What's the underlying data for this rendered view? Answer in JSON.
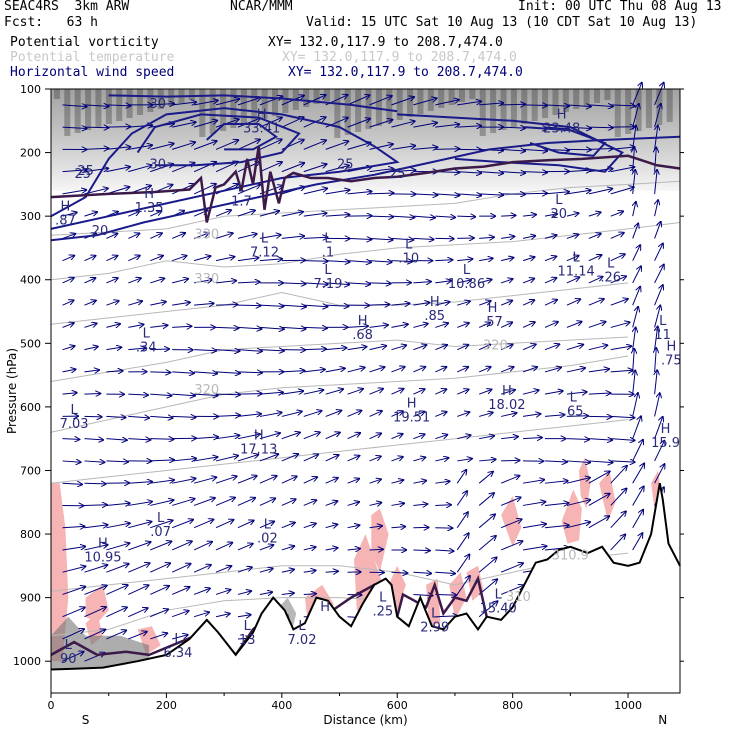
{
  "header": {
    "run": "SEAC4RS  3km ARW",
    "org": "NCAR/MMM",
    "init": "Init: 00 UTC Thu 08 Aug 13",
    "fcst": "Fcst:   63 h",
    "valid": "Valid: 15 UTC Sat 10 Aug 13 (10 CDT Sat 10 Aug 13)",
    "fields": [
      {
        "name": "Potential vorticity",
        "xy": "XY= 132.0,117.9 to 208.7,474.0",
        "color": "#000000"
      },
      {
        "name": "Potential temperature",
        "xy": "XY= 132.0,117.9 to 208.7,474.0",
        "color": "#c8c8c8"
      },
      {
        "name": "Horizontal wind speed",
        "xy": "XY= 132.0,117.9 to 208.7,474.0",
        "color": "#00007a"
      }
    ]
  },
  "chart_data": {
    "type": "cross-section",
    "xlabel": "Distance (km)",
    "ylabel": "Pressure (hPa)",
    "xlim": [
      0,
      1090
    ],
    "ylim": [
      1050,
      100
    ],
    "x_ticks": [
      0,
      200,
      400,
      600,
      800,
      1000
    ],
    "y_ticks": [
      100,
      200,
      300,
      400,
      500,
      600,
      700,
      800,
      900,
      1000
    ],
    "end_labels": {
      "left": "S",
      "right": "N"
    },
    "speed_contours": [
      {
        "label": "20",
        "x": 85,
        "p": 330
      },
      {
        "label": "25",
        "x": 55,
        "p": 240
      },
      {
        "label": "25",
        "x": 60,
        "p": 235
      },
      {
        "label": "30",
        "x": 185,
        "p": 130
      },
      {
        "label": "30",
        "x": 185,
        "p": 225
      },
      {
        "label": "25",
        "x": 600,
        "p": 240
      },
      {
        "label": "25",
        "x": 510,
        "p": 225
      }
    ],
    "theta_labels": [
      {
        "label": "330",
        "x": 270,
        "p": 335
      },
      {
        "label": "330",
        "x": 270,
        "p": 405
      },
      {
        "label": "320",
        "x": 270,
        "p": 580
      },
      {
        "label": "320",
        "x": 770,
        "p": 510
      },
      {
        "label": "310.9",
        "x": 900,
        "p": 840
      },
      {
        "label": "310",
        "x": 810,
        "p": 905
      }
    ],
    "extrema": [
      {
        "kind": "H",
        "value": "33.41",
        "x": 365,
        "p": 165
      },
      {
        "kind": "H",
        "value": "23.48",
        "x": 885,
        "p": 165
      },
      {
        "kind": "H",
        "value": ".87",
        "x": 25,
        "p": 310
      },
      {
        "kind": "H",
        "value": "1.35",
        "x": 170,
        "p": 290
      },
      {
        "kind": "L",
        "value": "1.7",
        "x": 330,
        "p": 280
      },
      {
        "kind": "L",
        "value": "7.12",
        "x": 370,
        "p": 360
      },
      {
        "kind": "L",
        "value": ".1",
        "x": 480,
        "p": 360
      },
      {
        "kind": "L",
        "value": "7.19",
        "x": 480,
        "p": 410
      },
      {
        "kind": "L",
        "value": ".10",
        "x": 620,
        "p": 370
      },
      {
        "kind": "L",
        "value": "10.86",
        "x": 720,
        "p": 410
      },
      {
        "kind": "L",
        "value": "20",
        "x": 880,
        "p": 300
      },
      {
        "kind": "L",
        "value": "11.14",
        "x": 910,
        "p": 390
      },
      {
        "kind": "L",
        "value": ".26",
        "x": 970,
        "p": 400
      },
      {
        "kind": "H",
        "value": ".68",
        "x": 540,
        "p": 490
      },
      {
        "kind": "H",
        "value": ".85",
        "x": 665,
        "p": 460
      },
      {
        "kind": "H",
        "value": ".57",
        "x": 765,
        "p": 470
      },
      {
        "kind": "L",
        "value": ".34",
        "x": 165,
        "p": 510
      },
      {
        "kind": "L",
        "value": "11",
        "x": 1060,
        "p": 490
      },
      {
        "kind": "H",
        "value": ".75",
        "x": 1075,
        "p": 530
      },
      {
        "kind": "L",
        "value": "7.03",
        "x": 40,
        "p": 630
      },
      {
        "kind": "H",
        "value": "19.51",
        "x": 625,
        "p": 620
      },
      {
        "kind": "H",
        "value": "18.02",
        "x": 790,
        "p": 600
      },
      {
        "kind": "L",
        "value": ".65",
        "x": 905,
        "p": 610
      },
      {
        "kind": "H",
        "value": "17.13",
        "x": 360,
        "p": 670
      },
      {
        "kind": "H",
        "value": "15.9",
        "x": 1065,
        "p": 660
      },
      {
        "kind": "H",
        "value": "10.95",
        "x": 90,
        "p": 840
      },
      {
        "kind": "L",
        "value": ".07",
        "x": 190,
        "p": 800
      },
      {
        "kind": "L",
        "value": ".02",
        "x": 375,
        "p": 810
      },
      {
        "kind": "L",
        "value": ".25",
        "x": 575,
        "p": 925
      },
      {
        "kind": "L",
        "value": "2.99",
        "x": 665,
        "p": 950
      },
      {
        "kind": "L",
        "value": "15.40",
        "x": 775,
        "p": 920
      },
      {
        "kind": "L",
        "value": "6.34",
        "x": 220,
        "p": 990
      },
      {
        "kind": "L",
        "value": "13",
        "x": 340,
        "p": 970
      },
      {
        "kind": "L",
        "value": "7.02",
        "x": 435,
        "p": 970
      },
      {
        "kind": "H",
        "value": "H",
        "x": 475,
        "p": 940
      },
      {
        "kind": "L",
        "value": "90",
        "x": 30,
        "p": 1000
      }
    ]
  }
}
